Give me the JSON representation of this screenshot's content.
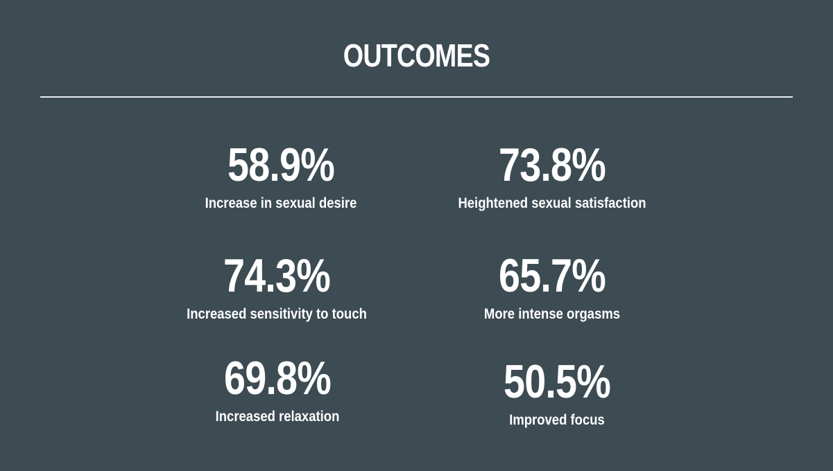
{
  "title": "OUTCOMES",
  "stats": [
    {
      "value": "58.9%",
      "label": "Increase in sexual desire"
    },
    {
      "value": "73.8%",
      "label": "Heightened sexual satisfaction"
    },
    {
      "value": "74.3%",
      "label": "Increased sensitivity to touch"
    },
    {
      "value": "65.7%",
      "label": "More intense orgasms"
    },
    {
      "value": "69.8%",
      "label": "Increased relaxation"
    },
    {
      "value": "50.5%",
      "label": "Improved focus"
    }
  ],
  "colors": {
    "background": "#3d4b53",
    "text": "#ffffff",
    "divider": "#e7ecef"
  }
}
